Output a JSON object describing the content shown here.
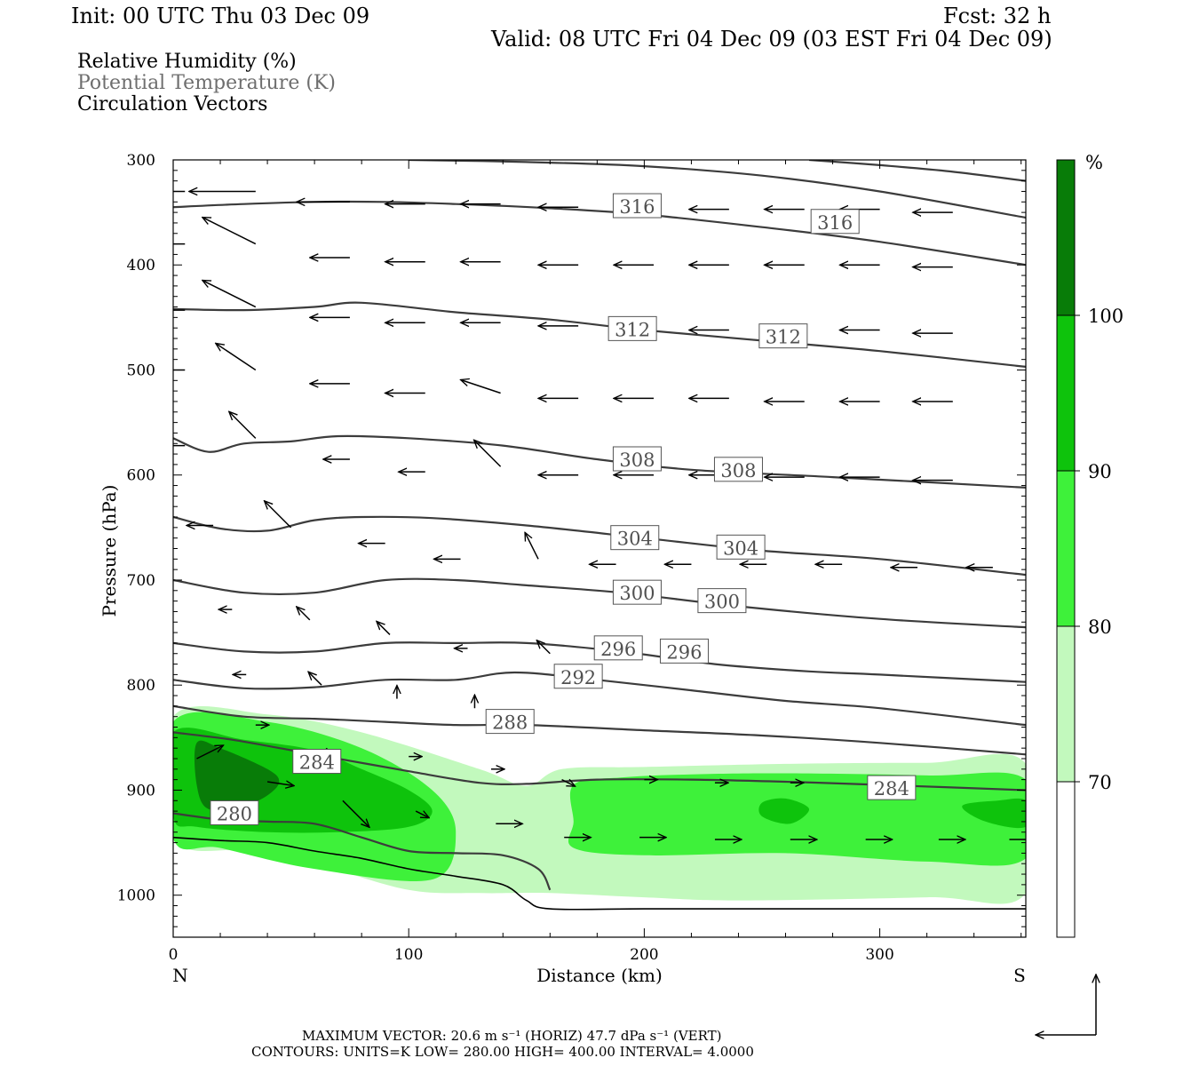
{
  "header": {
    "init": "Init: 00 UTC Thu 03 Dec 09",
    "fcst": "Fcst:   32 h",
    "valid": "Valid: 08 UTC Fri 04 Dec 09 (03 EST Fri 04 Dec 09)"
  },
  "fields": {
    "rh": "Relative Humidity (%)",
    "theta": "Potential Temperature (K)",
    "vectors": "Circulation Vectors"
  },
  "footer": {
    "max_vector": "MAXIMUM VECTOR:  20.6 m s⁻¹ (HORIZ)          47.7 dPa s⁻¹ (VERT)",
    "contours": "CONTOURS:  UNITS=K  LOW=  280.00        HIGH=  400.00        INTERVAL=    4.0000"
  },
  "colorbar": {
    "unit": "%",
    "levels": [
      70,
      80,
      90,
      100
    ],
    "colors": [
      "#ffffff",
      "#c2f9bd",
      "#3ef13a",
      "#0ec30c",
      "#087c08"
    ]
  },
  "colors": {
    "theta_line": "#3c3c3c",
    "vector": "#000000",
    "terrain": "#000000"
  },
  "chart_data": {
    "type": "cross-section",
    "xlabel": "Distance (km)",
    "ylabel": "Pressure (hPa)",
    "xlim": [
      0,
      362
    ],
    "ylim": [
      1040,
      300
    ],
    "x_ticks": [
      0,
      100,
      200,
      300
    ],
    "y_ticks": [
      300,
      400,
      500,
      600,
      700,
      800,
      900,
      1000
    ],
    "endpoint_labels": [
      "N",
      "S"
    ],
    "theta_contours": [
      {
        "level": 280,
        "x": [
          0,
          20,
          40,
          60,
          80,
          100,
          120,
          140,
          155,
          160
        ],
        "p": [
          922,
          928,
          930,
          932,
          945,
          958,
          960,
          962,
          975,
          995
        ],
        "labels": [
          {
            "x": 26,
            "p": 922
          }
        ]
      },
      {
        "level": 284,
        "x": [
          0,
          25,
          50,
          75,
          100,
          130,
          150,
          180,
          220,
          260,
          300,
          362
        ],
        "p": [
          845,
          852,
          862,
          872,
          882,
          893,
          894,
          890,
          890,
          892,
          895,
          900
        ],
        "labels": [
          {
            "x": 61,
            "p": 873
          },
          {
            "x": 305,
            "p": 898
          }
        ]
      },
      {
        "level": 288,
        "x": [
          0,
          30,
          60,
          90,
          120,
          150,
          200,
          250,
          300,
          362
        ],
        "p": [
          820,
          830,
          832,
          835,
          838,
          838,
          843,
          848,
          855,
          866
        ],
        "labels": [
          {
            "x": 143,
            "p": 835
          }
        ]
      },
      {
        "level": 292,
        "x": [
          0,
          30,
          60,
          90,
          120,
          145,
          180,
          220,
          260,
          300,
          362
        ],
        "p": [
          795,
          803,
          802,
          795,
          795,
          788,
          795,
          805,
          815,
          822,
          838
        ],
        "labels": [
          {
            "x": 172,
            "p": 792
          }
        ]
      },
      {
        "level": 296,
        "x": [
          0,
          30,
          60,
          90,
          120,
          150,
          190,
          230,
          270,
          300,
          362
        ],
        "p": [
          760,
          768,
          768,
          760,
          760,
          760,
          768,
          780,
          787,
          790,
          797
        ],
        "labels": [
          {
            "x": 189,
            "p": 765
          },
          {
            "x": 217,
            "p": 768
          }
        ]
      },
      {
        "level": 300,
        "x": [
          0,
          30,
          60,
          90,
          120,
          150,
          190,
          240,
          300,
          362
        ],
        "p": [
          700,
          712,
          712,
          700,
          700,
          705,
          712,
          725,
          737,
          745
        ],
        "labels": [
          {
            "x": 197,
            "p": 712
          },
          {
            "x": 233,
            "p": 720
          }
        ]
      },
      {
        "level": 304,
        "x": [
          0,
          20,
          40,
          60,
          80,
          110,
          150,
          200,
          250,
          300,
          362
        ],
        "p": [
          640,
          651,
          653,
          643,
          640,
          641,
          648,
          660,
          672,
          680,
          695
        ],
        "labels": [
          {
            "x": 196,
            "p": 660
          },
          {
            "x": 241,
            "p": 669
          }
        ]
      },
      {
        "level": 308,
        "x": [
          0,
          15,
          30,
          50,
          70,
          100,
          140,
          180,
          220,
          280,
          362
        ],
        "p": [
          565,
          578,
          570,
          568,
          563,
          565,
          572,
          585,
          595,
          602,
          612
        ],
        "labels": [
          {
            "x": 197,
            "p": 585
          },
          {
            "x": 240,
            "p": 595
          }
        ]
      },
      {
        "level": 312,
        "x": [
          0,
          30,
          60,
          80,
          120,
          160,
          200,
          250,
          300,
          362
        ],
        "p": [
          442,
          443,
          440,
          436,
          445,
          452,
          462,
          472,
          482,
          497
        ],
        "labels": [
          {
            "x": 195,
            "p": 461
          },
          {
            "x": 259,
            "p": 468
          }
        ]
      },
      {
        "level": 316,
        "x": [
          0,
          30,
          60,
          90,
          120,
          160,
          200,
          250,
          300,
          362
        ],
        "p": [
          345,
          342,
          340,
          340,
          342,
          346,
          352,
          364,
          378,
          400
        ],
        "labels": [
          {
            "x": 197,
            "p": 344
          },
          {
            "x": 281,
            "p": 359
          }
        ]
      },
      {
        "level": 320,
        "x": [
          100,
          150,
          200,
          250,
          300,
          362
        ],
        "p": [
          300,
          302,
          306,
          315,
          330,
          355
        ],
        "labels": []
      },
      {
        "level": 324,
        "x": [
          270,
          300,
          330,
          362
        ],
        "p": [
          300,
          305,
          311,
          320
        ],
        "labels": []
      }
    ],
    "rh_regions": [
      {
        "level": 70,
        "x": [
          0,
          40,
          80,
          130,
          150,
          165,
          200,
          260,
          320,
          362,
          362,
          320,
          240,
          200,
          160,
          130,
          100,
          60,
          30,
          0
        ],
        "p": [
          830,
          828,
          845,
          880,
          896,
          880,
          878,
          875,
          874,
          875,
          998,
          1002,
          1005,
          1002,
          998,
          998,
          995,
          970,
          958,
          945
        ]
      },
      {
        "level": 80,
        "x": [
          0,
          40,
          80,
          110,
          120,
          110,
          60,
          20,
          0
        ],
        "p": [
          835,
          835,
          860,
          900,
          940,
          985,
          975,
          955,
          946
        ]
      },
      {
        "level": 80,
        "x": [
          170,
          190,
          220,
          260,
          320,
          362,
          362,
          320,
          260,
          200,
          170,
          170
        ],
        "p": [
          895,
          888,
          885,
          884,
          886,
          890,
          965,
          968,
          960,
          962,
          955,
          930
        ]
      },
      {
        "level": 90,
        "x": [
          0,
          30,
          60,
          80,
          100,
          110,
          100,
          70,
          40,
          10,
          0
        ],
        "p": [
          845,
          852,
          862,
          880,
          900,
          920,
          935,
          940,
          940,
          935,
          925
        ]
      },
      {
        "level": 90,
        "x": [
          250,
          260,
          270,
          262,
          250
        ],
        "p": [
          912,
          908,
          918,
          932,
          925
        ]
      },
      {
        "level": 90,
        "x": [
          335,
          350,
          362,
          362,
          345
        ],
        "p": [
          915,
          910,
          910,
          935,
          930
        ]
      },
      {
        "level": 100,
        "x": [
          10,
          20,
          40,
          45,
          40,
          30,
          15,
          10
        ],
        "p": [
          855,
          860,
          880,
          892,
          905,
          915,
          918,
          895
        ]
      }
    ],
    "terrain": {
      "x": [
        0,
        20,
        40,
        60,
        80,
        100,
        120,
        140,
        150,
        160,
        200,
        250,
        300,
        362
      ],
      "p": [
        945,
        948,
        950,
        958,
        965,
        975,
        982,
        990,
        1005,
        1013,
        1013,
        1013,
        1013,
        1013
      ]
    },
    "vectors": [
      {
        "x": 5,
        "p": 330,
        "u": -4,
        "w": 0
      },
      {
        "x": 35,
        "p": 330,
        "u": -5,
        "w": 0
      },
      {
        "x": 75,
        "p": 340,
        "u": -4,
        "w": 0
      },
      {
        "x": 107,
        "p": 342,
        "u": -3,
        "w": 0
      },
      {
        "x": 139,
        "p": 342,
        "u": -3,
        "w": 0
      },
      {
        "x": 172,
        "p": 345,
        "u": -3,
        "w": 0
      },
      {
        "x": 204,
        "p": 347,
        "u": -3,
        "w": 0
      },
      {
        "x": 236,
        "p": 347,
        "u": -3,
        "w": 0
      },
      {
        "x": 268,
        "p": 347,
        "u": -3,
        "w": 0
      },
      {
        "x": 300,
        "p": 347,
        "u": -3,
        "w": 0
      },
      {
        "x": 331,
        "p": 350,
        "u": -3,
        "w": 0
      },
      {
        "x": 5,
        "p": 380,
        "u": -4,
        "w": 0
      },
      {
        "x": 35,
        "p": 380,
        "u": -4,
        "w": -2
      },
      {
        "x": 75,
        "p": 393,
        "u": -3,
        "w": 0
      },
      {
        "x": 107,
        "p": 397,
        "u": -3,
        "w": 0
      },
      {
        "x": 139,
        "p": 397,
        "u": -3,
        "w": 0
      },
      {
        "x": 172,
        "p": 400,
        "u": -3,
        "w": 0
      },
      {
        "x": 204,
        "p": 400,
        "u": -3,
        "w": 0
      },
      {
        "x": 236,
        "p": 400,
        "u": -3,
        "w": 0
      },
      {
        "x": 268,
        "p": 400,
        "u": -3,
        "w": 0
      },
      {
        "x": 300,
        "p": 400,
        "u": -3,
        "w": 0
      },
      {
        "x": 331,
        "p": 402,
        "u": -3,
        "w": 0
      },
      {
        "x": 5,
        "p": 443,
        "u": -3,
        "w": 0
      },
      {
        "x": 35,
        "p": 440,
        "u": -4,
        "w": -2
      },
      {
        "x": 75,
        "p": 450,
        "u": -3,
        "w": 0
      },
      {
        "x": 107,
        "p": 455,
        "u": -3,
        "w": 0
      },
      {
        "x": 139,
        "p": 455,
        "u": -3,
        "w": 0
      },
      {
        "x": 172,
        "p": 458,
        "u": -3,
        "w": 0
      },
      {
        "x": 204,
        "p": 462,
        "u": -3,
        "w": 0
      },
      {
        "x": 236,
        "p": 462,
        "u": -3,
        "w": 0
      },
      {
        "x": 268,
        "p": 462,
        "u": -3,
        "w": 0
      },
      {
        "x": 300,
        "p": 462,
        "u": -3,
        "w": 0
      },
      {
        "x": 331,
        "p": 465,
        "u": -3,
        "w": 0
      },
      {
        "x": 5,
        "p": 500,
        "u": -3,
        "w": 0
      },
      {
        "x": 35,
        "p": 500,
        "u": -3,
        "w": -2
      },
      {
        "x": 75,
        "p": 513,
        "u": -3,
        "w": 0
      },
      {
        "x": 107,
        "p": 522,
        "u": -3,
        "w": 0
      },
      {
        "x": 139,
        "p": 522,
        "u": -3,
        "w": -1
      },
      {
        "x": 172,
        "p": 527,
        "u": -3,
        "w": 0
      },
      {
        "x": 204,
        "p": 527,
        "u": -3,
        "w": 0
      },
      {
        "x": 236,
        "p": 527,
        "u": -3,
        "w": 0
      },
      {
        "x": 268,
        "p": 530,
        "u": -3,
        "w": 0
      },
      {
        "x": 300,
        "p": 530,
        "u": -3,
        "w": 0
      },
      {
        "x": 331,
        "p": 530,
        "u": -3,
        "w": 0
      },
      {
        "x": 5,
        "p": 572,
        "u": -3,
        "w": 0
      },
      {
        "x": 35,
        "p": 565,
        "u": -2,
        "w": -2
      },
      {
        "x": 75,
        "p": 585,
        "u": -2,
        "w": 0
      },
      {
        "x": 107,
        "p": 597,
        "u": -2,
        "w": 0
      },
      {
        "x": 139,
        "p": 592,
        "u": -2,
        "w": -2
      },
      {
        "x": 172,
        "p": 600,
        "u": -3,
        "w": 0
      },
      {
        "x": 204,
        "p": 600,
        "u": -3,
        "w": 0
      },
      {
        "x": 236,
        "p": 600,
        "u": -3,
        "w": 0
      },
      {
        "x": 268,
        "p": 602,
        "u": -3,
        "w": 0
      },
      {
        "x": 300,
        "p": 602,
        "u": -3,
        "w": 0
      },
      {
        "x": 331,
        "p": 605,
        "u": -3,
        "w": 0
      },
      {
        "x": 17,
        "p": 648,
        "u": -2,
        "w": 0
      },
      {
        "x": 50,
        "p": 650,
        "u": -2,
        "w": -2
      },
      {
        "x": 90,
        "p": 665,
        "u": -2,
        "w": 0
      },
      {
        "x": 122,
        "p": 680,
        "u": -2,
        "w": 0
      },
      {
        "x": 155,
        "p": 680,
        "u": -1,
        "w": -2
      },
      {
        "x": 188,
        "p": 685,
        "u": -2,
        "w": 0
      },
      {
        "x": 220,
        "p": 685,
        "u": -2,
        "w": 0
      },
      {
        "x": 252,
        "p": 685,
        "u": -2,
        "w": 0
      },
      {
        "x": 284,
        "p": 685,
        "u": -2,
        "w": 0
      },
      {
        "x": 316,
        "p": 688,
        "u": -2,
        "w": 0
      },
      {
        "x": 348,
        "p": 688,
        "u": -2,
        "w": 0
      },
      {
        "x": 25,
        "p": 728,
        "u": -1,
        "w": 0
      },
      {
        "x": 58,
        "p": 738,
        "u": -1,
        "w": -1
      },
      {
        "x": 92,
        "p": 752,
        "u": -1,
        "w": -1
      },
      {
        "x": 125,
        "p": 765,
        "u": -1,
        "w": 0
      },
      {
        "x": 160,
        "p": 770,
        "u": -1,
        "w": -1
      },
      {
        "x": 31,
        "p": 790,
        "u": -1,
        "w": 0
      },
      {
        "x": 63,
        "p": 800,
        "u": -1,
        "w": -1
      },
      {
        "x": 95,
        "p": 813,
        "u": 0,
        "w": -1
      },
      {
        "x": 128,
        "p": 822,
        "u": 0,
        "w": -1
      },
      {
        "x": 35,
        "p": 838,
        "u": 1,
        "w": 0
      },
      {
        "x": 65,
        "p": 860,
        "u": 1,
        "w": 1.5
      },
      {
        "x": 100,
        "p": 868,
        "u": 1,
        "w": 0
      },
      {
        "x": 135,
        "p": 880,
        "u": 1,
        "w": 0
      },
      {
        "x": 165,
        "p": 890,
        "u": 1,
        "w": 0.5
      },
      {
        "x": 200,
        "p": 890,
        "u": 1,
        "w": 0
      },
      {
        "x": 230,
        "p": 893,
        "u": 1,
        "w": 0
      },
      {
        "x": 262,
        "p": 893,
        "u": 1,
        "w": 0
      },
      {
        "x": 10,
        "p": 870,
        "u": 2,
        "w": -1
      },
      {
        "x": 40,
        "p": 892,
        "u": 2,
        "w": 0.3
      },
      {
        "x": 72,
        "p": 910,
        "u": 2,
        "w": 2
      },
      {
        "x": 103,
        "p": 920,
        "u": 1,
        "w": 0.5
      },
      {
        "x": 137,
        "p": 932,
        "u": 2,
        "w": 0
      },
      {
        "x": 166,
        "p": 945,
        "u": 2,
        "w": 0
      },
      {
        "x": 198,
        "p": 945,
        "u": 2,
        "w": 0
      },
      {
        "x": 230,
        "p": 947,
        "u": 2,
        "w": 0
      },
      {
        "x": 262,
        "p": 947,
        "u": 2,
        "w": 0
      },
      {
        "x": 294,
        "p": 947,
        "u": 2,
        "w": 0
      },
      {
        "x": 325,
        "p": 947,
        "u": 2,
        "w": 0
      },
      {
        "x": 355,
        "p": 947,
        "u": 2,
        "w": 0
      }
    ]
  }
}
